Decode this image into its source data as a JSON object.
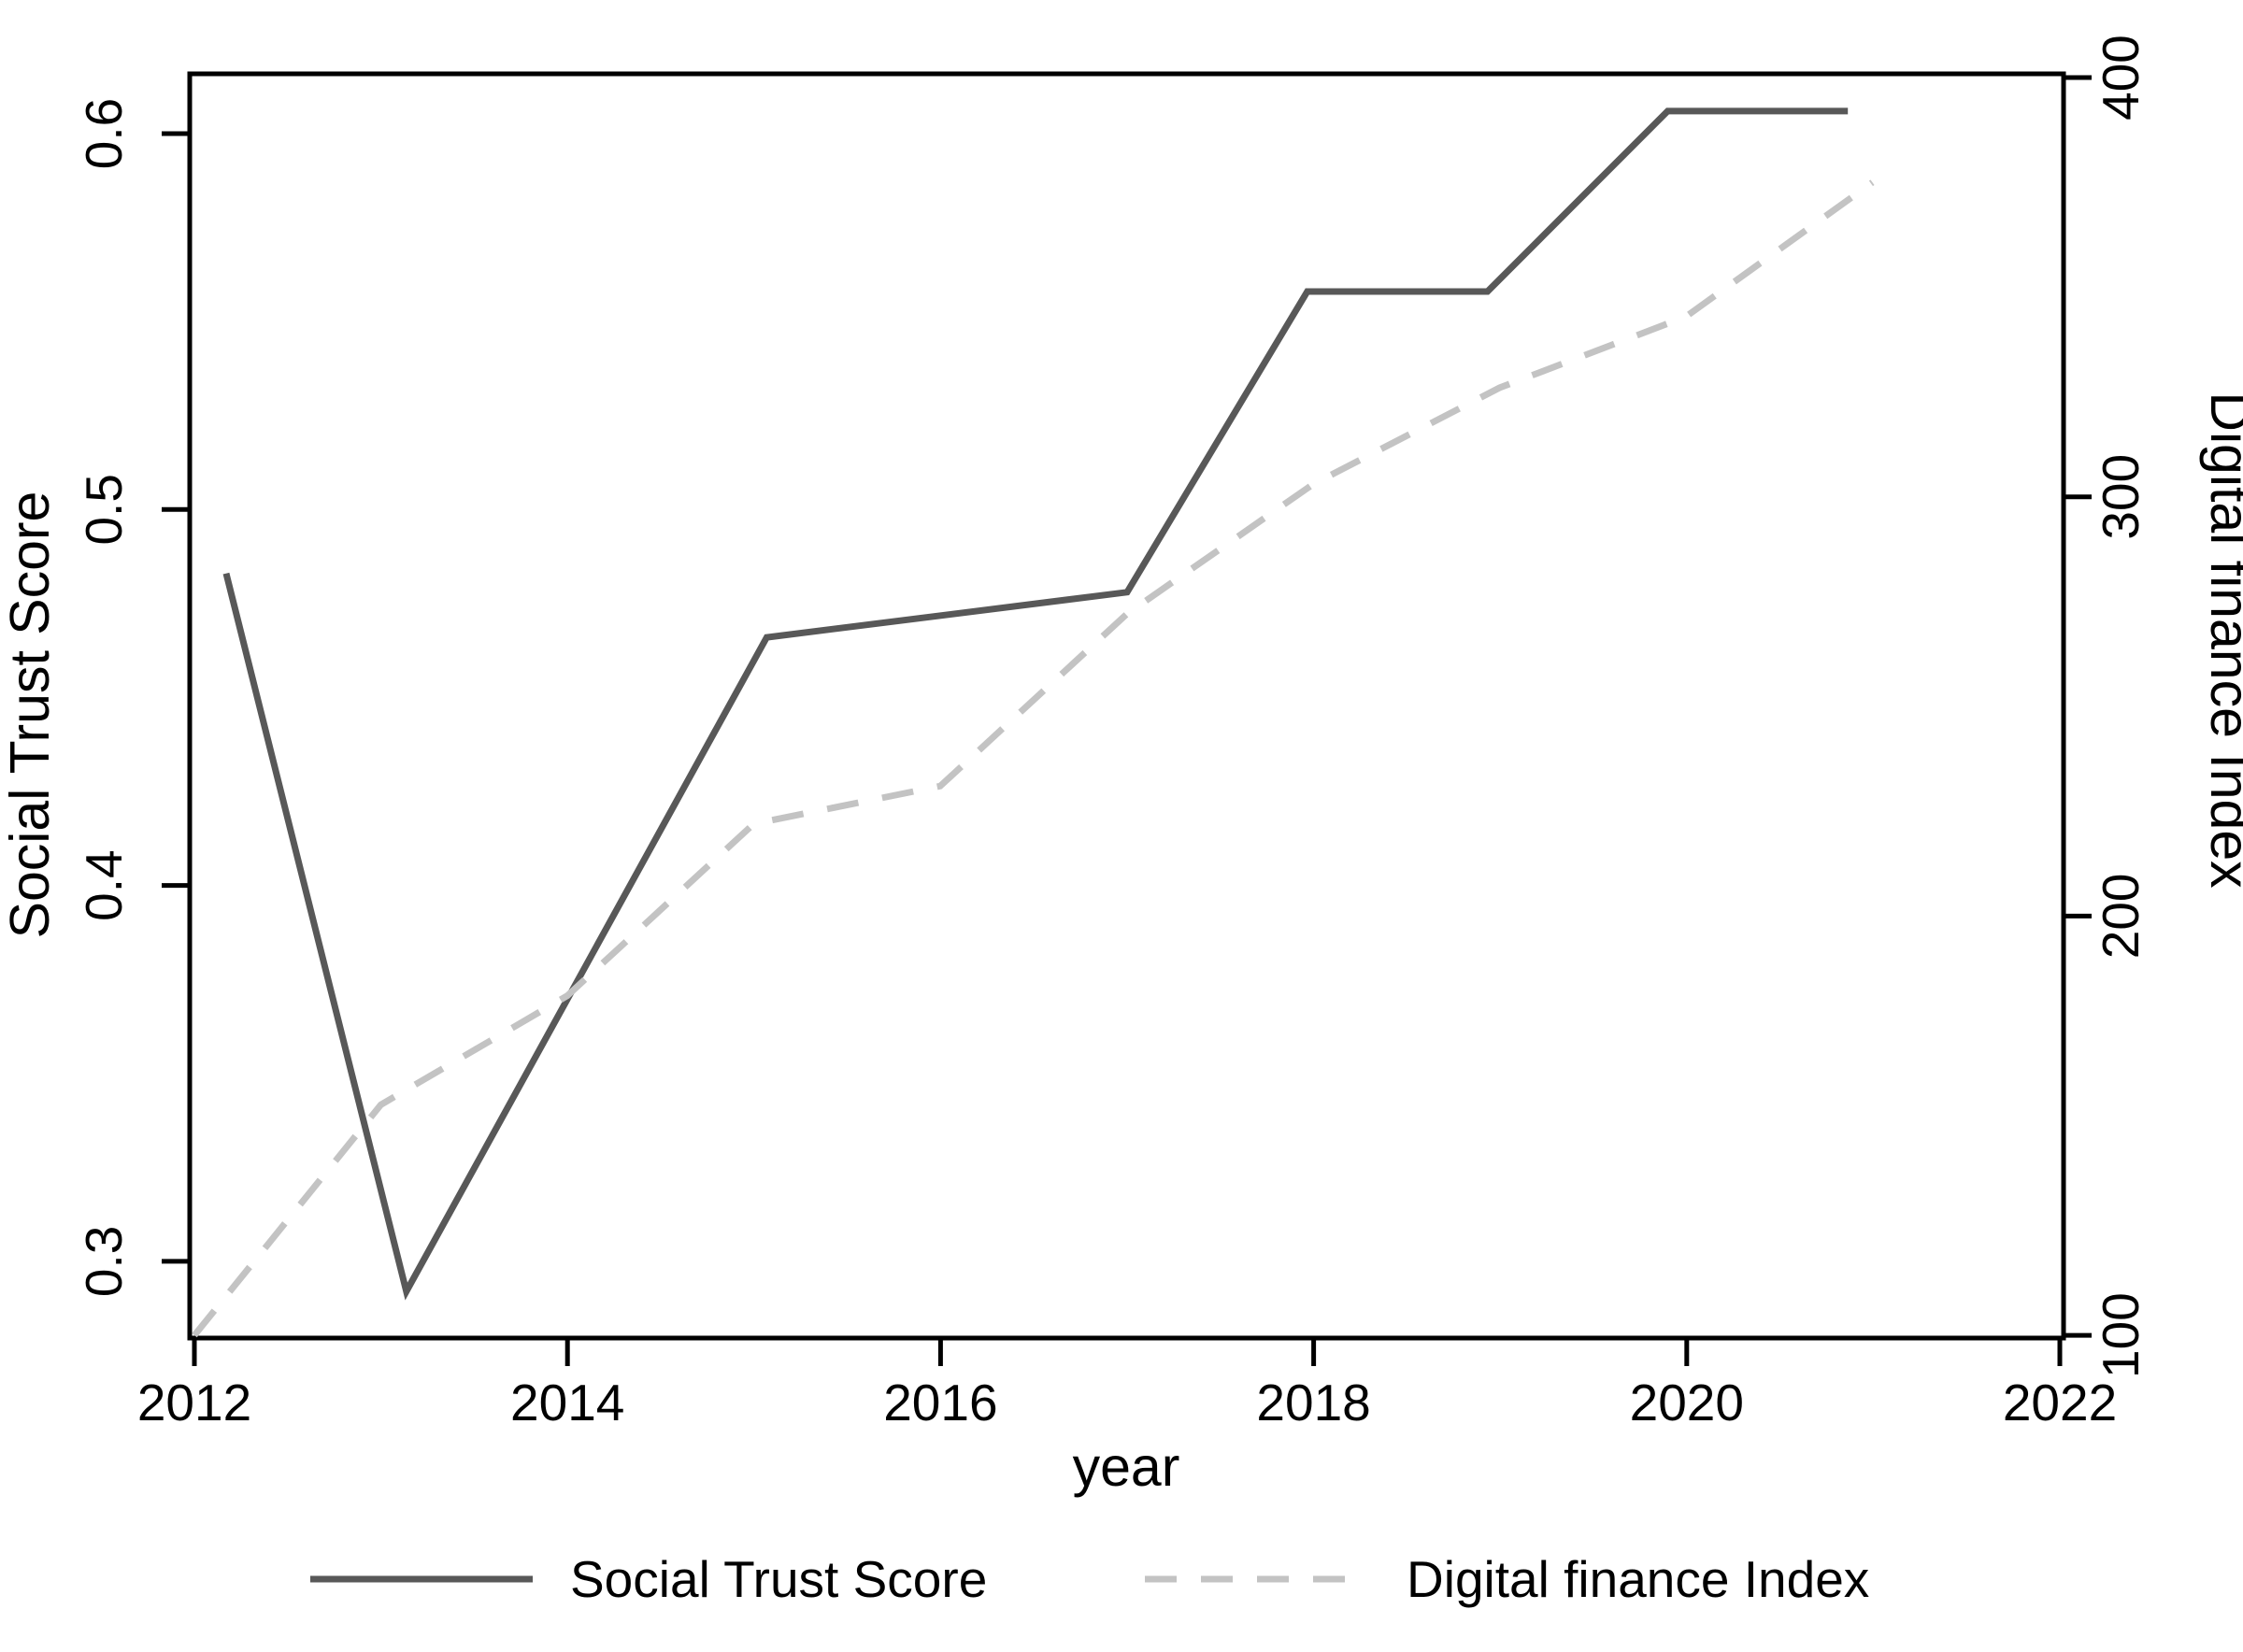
{
  "chart_data": {
    "type": "line",
    "title": "",
    "xlabel": "year",
    "x_ticks": [
      2012,
      2014,
      2016,
      2018,
      2020,
      2022
    ],
    "x_range": [
      2012,
      2022
    ],
    "grid": false,
    "left_axis": {
      "label": "Social Trust Score",
      "ticks": [
        0.6,
        0.5,
        0.4,
        0.3
      ],
      "range": [
        0.28,
        0.616
      ]
    },
    "right_axis": {
      "label": "Digital finance Index",
      "ticks": [
        400,
        300,
        200,
        100
      ],
      "range": [
        99,
        401
      ]
    },
    "series": [
      {
        "name": "Social Trust Score",
        "axis": "left",
        "style": "solid",
        "color": "#585858",
        "x": [
          2012,
          2013,
          2015,
          2017,
          2018,
          2019,
          2020,
          2021
        ],
        "y": [
          0.483,
          0.292,
          0.466,
          0.478,
          0.558,
          0.558,
          0.606,
          0.606
        ]
      },
      {
        "name": "Digital finance Index",
        "axis": "right",
        "style": "dashed",
        "color": "#c3c3c3",
        "x": [
          2012,
          2013,
          2014,
          2015,
          2016,
          2017,
          2018,
          2019,
          2020,
          2021
        ],
        "y": [
          100,
          155,
          181,
          222,
          231,
          272,
          303,
          326,
          343,
          375
        ]
      }
    ],
    "legend": {
      "position": "bottom",
      "items": [
        "Social Trust Score",
        "Digital finance Index"
      ]
    }
  }
}
